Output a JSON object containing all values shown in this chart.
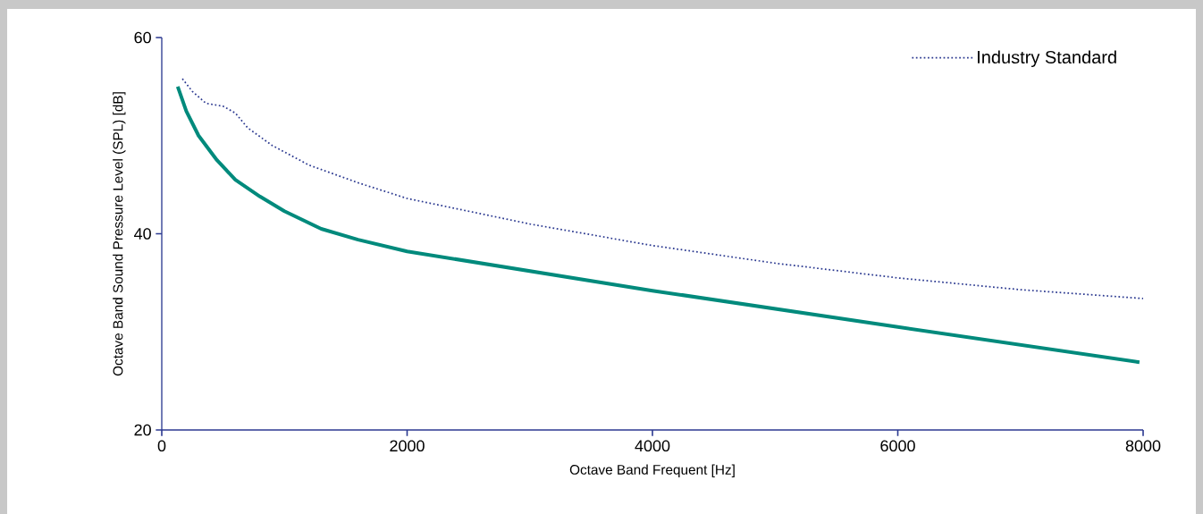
{
  "chart_data": {
    "type": "line",
    "xlabel": "Octave Band Frequent [Hz]",
    "ylabel": "Octave Band Sound Pressure Level (SPL) [dB]",
    "xlim": [
      0,
      8000
    ],
    "ylim": [
      20,
      60
    ],
    "xticks": [
      0,
      2000,
      4000,
      6000,
      8000
    ],
    "yticks": [
      20,
      40,
      60
    ],
    "grid": false,
    "legend": "top right",
    "marker": "none",
    "series": [
      {
        "name": "Industry Standard",
        "color": "#2b3990",
        "line_style": "dotted",
        "x": [
          168,
          250,
          360,
          500,
          600,
          700,
          900,
          1200,
          1600,
          2000,
          3000,
          4000,
          5000,
          6000,
          7000,
          8000
        ],
        "values": [
          55.8,
          54.5,
          53.3,
          53.0,
          52.3,
          50.8,
          49.0,
          47.0,
          45.2,
          43.6,
          41.0,
          38.8,
          37.0,
          35.5,
          34.3,
          33.4
        ]
      },
      {
        "color": "#008a7c",
        "line_style": "solid",
        "x": [
          130,
          200,
          300,
          450,
          600,
          800,
          1000,
          1300,
          1600,
          2000,
          4000,
          6000,
          7970
        ],
        "values": [
          55.0,
          52.5,
          50.0,
          47.5,
          45.5,
          43.8,
          42.3,
          40.5,
          39.4,
          38.2,
          34.2,
          30.5,
          26.9
        ]
      }
    ]
  }
}
